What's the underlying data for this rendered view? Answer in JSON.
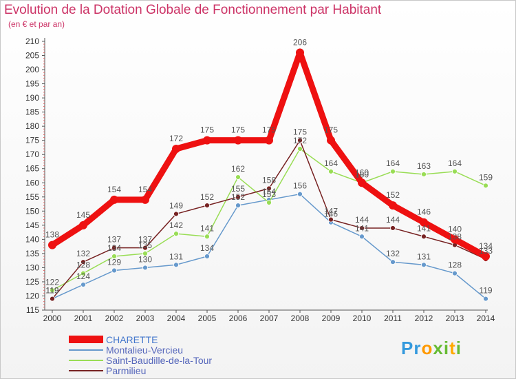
{
  "page": {
    "title": "Evolution de la Dotation Globale de Fonctionnement par Habitant",
    "subtitle": "(en € et par an)"
  },
  "chart_data": {
    "type": "line",
    "title": "Evolution de la Dotation Globale de Fonctionnement par Habitant",
    "ylabel": "(en € et par an)",
    "xlabel": "",
    "x": [
      "2000",
      "2001",
      "2002",
      "2003",
      "2004",
      "2005",
      "2006",
      "2007",
      "2008",
      "2009",
      "2010",
      "2011",
      "2012",
      "2013",
      "2014"
    ],
    "ylim": [
      115,
      210
    ],
    "ytick_step": 5,
    "grid": false,
    "legend_position": "bottom-left",
    "series": [
      {
        "name": "CHARETTE",
        "color": "#ee1111",
        "values": [
          138,
          145,
          154,
          154,
          172,
          175,
          175,
          175,
          206,
          175,
          160,
          152,
          146,
          140,
          134
        ]
      },
      {
        "name": "Montalieu-Vercieu",
        "color": "#6699cc",
        "values": [
          119,
          124,
          129,
          130,
          131,
          134,
          152,
          154,
          156,
          146,
          141,
          132,
          131,
          128,
          119
        ]
      },
      {
        "name": "Saint-Baudille-de-la-Tour",
        "color": "#99dd55",
        "values": [
          122,
          128,
          134,
          135,
          142,
          141,
          162,
          153,
          172,
          164,
          160,
          164,
          163,
          164,
          159
        ]
      },
      {
        "name": "Parmilieu",
        "color": "#772222",
        "values": [
          119,
          132,
          137,
          137,
          149,
          152,
          155,
          158,
          175,
          147,
          144,
          144,
          141,
          138,
          133
        ]
      }
    ]
  },
  "logo": {
    "letters": [
      "P",
      "r",
      "o",
      "x",
      "i",
      "t",
      "i"
    ],
    "colors": [
      "#3399dd",
      "#3399dd",
      "#ff9900",
      "#66bb33",
      "#66bb33",
      "#ffaa00",
      "#66bb33"
    ]
  }
}
